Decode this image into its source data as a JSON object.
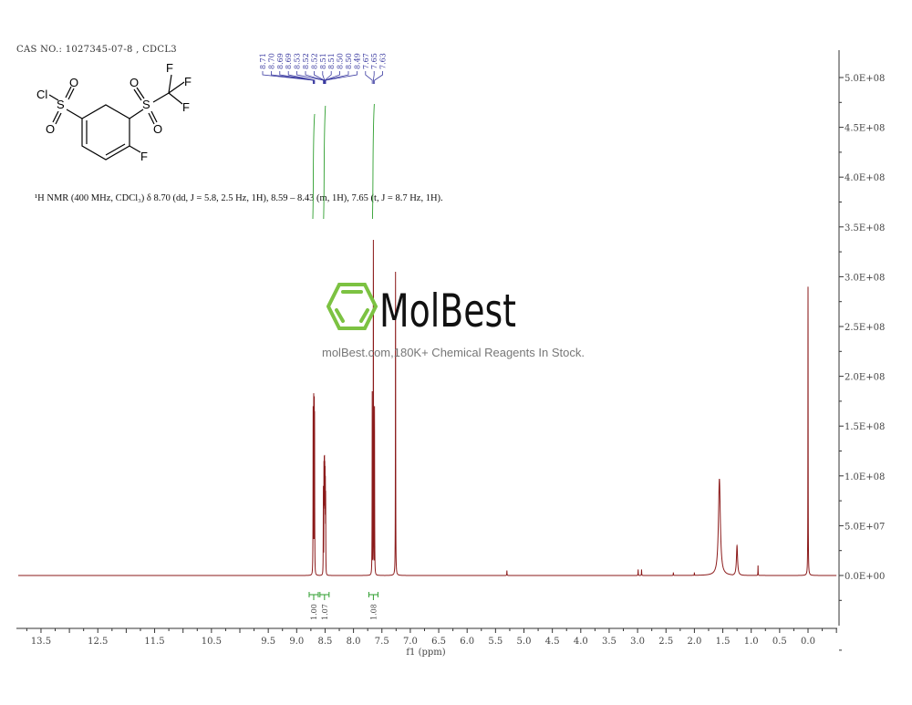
{
  "header": {
    "cas": "CAS NO.: 1027345-07-8   , CDCL3",
    "description": "¹H NMR (400 MHz, CDCl₃) δ 8.70 (dd, J = 5.8, 2.5 Hz, 1H), 8.59 – 8.43 (m, 1H), 7.65 (t, J = 8.7 Hz, 1H)."
  },
  "structure": {
    "atoms": {
      "cl": "Cl",
      "s1": "S",
      "o1": "O",
      "o2": "O",
      "s2": "S",
      "o3": "O",
      "o4": "O",
      "f1": "F",
      "f2": "F",
      "f3": "F",
      "f4": "F"
    }
  },
  "watermark": {
    "brand": "MolBest",
    "tagline": "molBest.com,180K+ Chemical Reagents In Stock."
  },
  "colors": {
    "spectrum": "#8b1a1a",
    "integral": "#2e9e2e",
    "peak_label": "#3a3aa0",
    "brand_green": "#7cc242"
  },
  "chart_data": {
    "type": "line",
    "title": "",
    "xlabel": "f1 (ppm)",
    "ylabel": "",
    "xlim": [
      13.9,
      -0.5
    ],
    "ylim": [
      -100000000.0,
      520000000.0
    ],
    "x_ticks": [
      "13.5",
      "12.5",
      "11.5",
      "10.5",
      "9.5",
      "9.0",
      "8.5",
      "8.0",
      "7.5",
      "7.0",
      "6.5",
      "6.0",
      "5.5",
      "5.0",
      "4.5",
      "4.0",
      "3.5",
      "3.0",
      "2.5",
      "2.0",
      "1.5",
      "1.0",
      "0.5",
      "0.0"
    ],
    "y_ticks": [
      "5.0E+08",
      "4.5E+08",
      "4.0E+08",
      "3.5E+08",
      "3.0E+08",
      "2.5E+08",
      "2.0E+08",
      "1.5E+08",
      "1.0E+08",
      "5.0E+07",
      "0.0E+00"
    ],
    "grid": false,
    "peaks": [
      {
        "ppm": 8.71,
        "intensity": 170000000.0
      },
      {
        "ppm": 8.7,
        "intensity": 183000000.0
      },
      {
        "ppm": 8.69,
        "intensity": 180000000.0
      },
      {
        "ppm": 8.685,
        "intensity": 165000000.0
      },
      {
        "ppm": 8.53,
        "intensity": 90000000.0
      },
      {
        "ppm": 8.52,
        "intensity": 115000000.0
      },
      {
        "ppm": 8.515,
        "intensity": 120000000.0
      },
      {
        "ppm": 8.51,
        "intensity": 121000000.0
      },
      {
        "ppm": 8.505,
        "intensity": 115000000.0
      },
      {
        "ppm": 8.5,
        "intensity": 110000000.0
      },
      {
        "ppm": 8.495,
        "intensity": 100000000.0
      },
      {
        "ppm": 8.49,
        "intensity": 85000000.0
      },
      {
        "ppm": 7.67,
        "intensity": 185000000.0
      },
      {
        "ppm": 7.65,
        "intensity": 337000000.0
      },
      {
        "ppm": 7.63,
        "intensity": 170000000.0
      },
      {
        "ppm": 7.26,
        "intensity": 305000000.0
      },
      {
        "ppm": 5.3,
        "intensity": 5000000.0
      },
      {
        "ppm": 2.99,
        "intensity": 6000000.0
      },
      {
        "ppm": 2.93,
        "intensity": 6000000.0
      },
      {
        "ppm": 2.37,
        "intensity": 3000000.0
      },
      {
        "ppm": 2.0,
        "intensity": 3000000.0
      },
      {
        "ppm": 1.56,
        "intensity": 97000000.0
      },
      {
        "ppm": 1.25,
        "intensity": 30000000.0
      },
      {
        "ppm": 0.88,
        "intensity": 10000000.0
      },
      {
        "ppm": 0.0,
        "intensity": 290000000.0
      }
    ],
    "peak_labels": [
      "8.71",
      "8.70",
      "8.69",
      "8.69",
      "8.53",
      "8.52",
      "8.52",
      "8.51",
      "8.51",
      "8.50",
      "8.50",
      "8.49",
      "7.67",
      "7.65",
      "7.63"
    ],
    "integrals": [
      {
        "ppm": 8.7,
        "value": "1.00"
      },
      {
        "ppm": 8.51,
        "value": "1.07"
      },
      {
        "ppm": 7.65,
        "value": "1.08"
      }
    ]
  }
}
